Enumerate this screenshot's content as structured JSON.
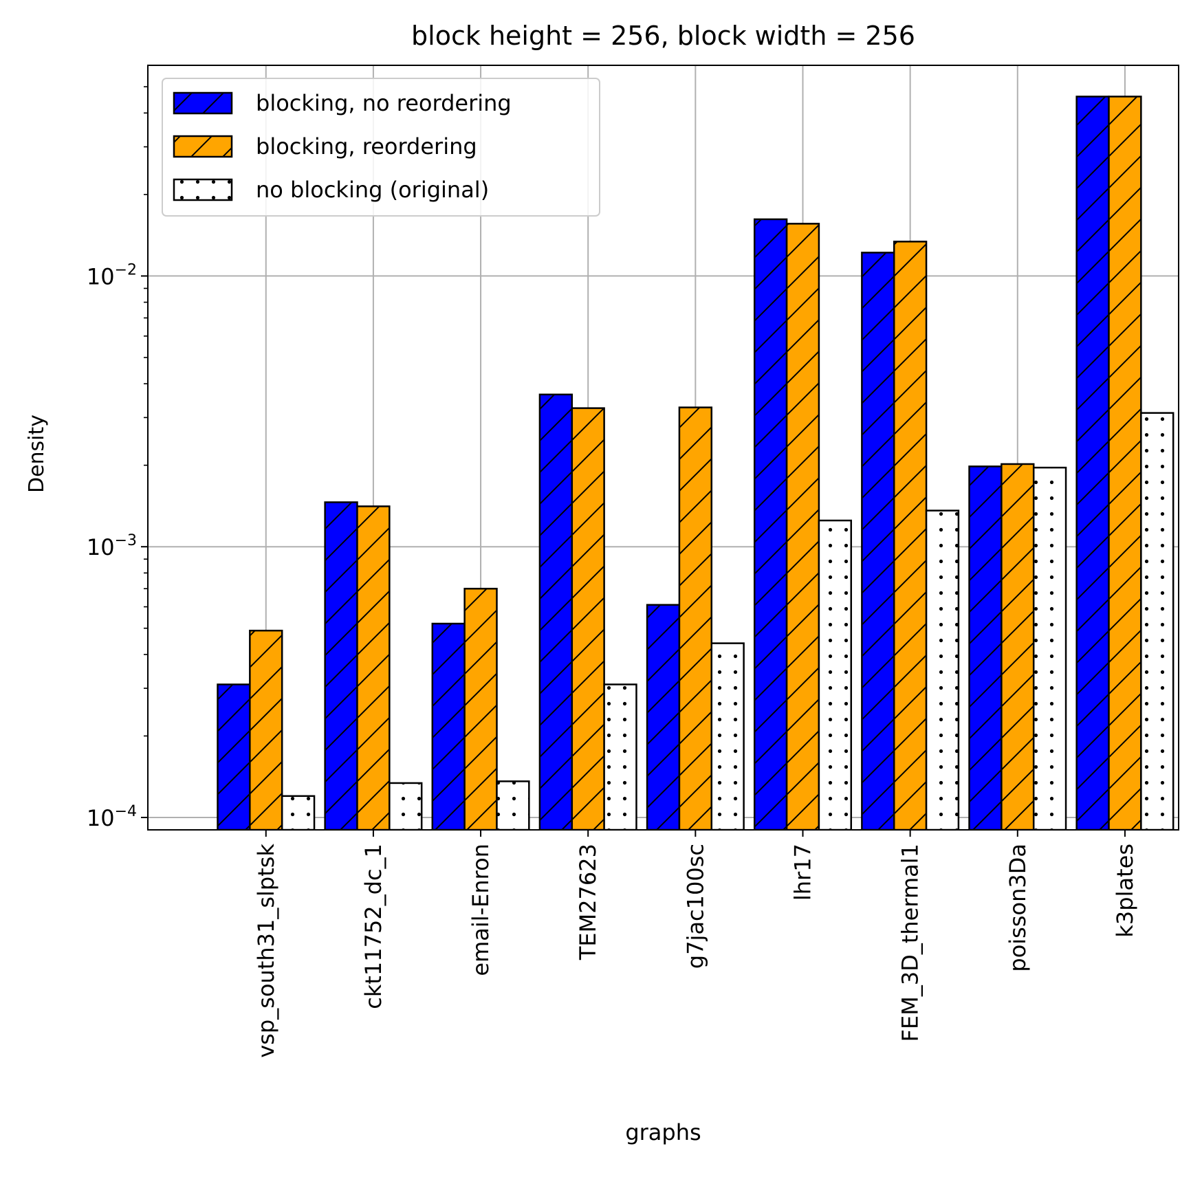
{
  "chart_data": {
    "type": "bar",
    "title": "block height = 256, block width = 256",
    "xlabel": "graphs",
    "ylabel": "Density",
    "yscale": "log",
    "ylim": [
      9e-05,
      0.06
    ],
    "yticks": [
      {
        "value": 0.0001,
        "base": "10",
        "exp": "−4"
      },
      {
        "value": 0.001,
        "base": "10",
        "exp": "−3"
      },
      {
        "value": 0.01,
        "base": "10",
        "exp": "−2"
      }
    ],
    "grid": true,
    "legend_position": "top-left",
    "categories": [
      "vsp_south31_slptsk",
      "ckt11752_dc_1",
      "email-Enron",
      "TEM27623",
      "g7jac100sc",
      "lhr17",
      "FEM_3D_thermal1",
      "poisson3Da",
      "k3plates"
    ],
    "series": [
      {
        "name": "blocking, no reordering",
        "color": "#0000ff",
        "hatch": "diagonal",
        "values": [
          0.00031,
          0.00146,
          0.00052,
          0.00365,
          0.00061,
          0.0162,
          0.0122,
          0.00198,
          0.046
        ]
      },
      {
        "name": "blocking, reordering",
        "color": "#ffa500",
        "hatch": "diagonal",
        "values": [
          0.00049,
          0.00141,
          0.0007,
          0.00325,
          0.00327,
          0.0156,
          0.0134,
          0.00202,
          0.046
        ]
      },
      {
        "name": "no blocking (original)",
        "color": "#ffffff",
        "hatch": "dots",
        "values": [
          0.00012,
          0.000134,
          0.000136,
          0.00031,
          0.00044,
          0.00125,
          0.00136,
          0.00196,
          0.00312
        ]
      }
    ]
  }
}
